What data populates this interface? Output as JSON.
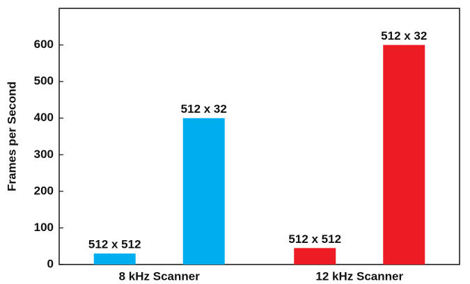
{
  "chart_data": {
    "type": "bar",
    "y_label": "Frames per Second",
    "categories": [
      "8 kHz Scanner",
      "12 kHz Scanner"
    ],
    "colors": [
      "#00aeef",
      "#ed1c24"
    ],
    "series": [
      {
        "name": "512 x 512",
        "values": [
          30,
          45
        ]
      },
      {
        "name": "512 x 32",
        "values": [
          400,
          600
        ]
      }
    ],
    "ylim": [
      0,
      700
    ],
    "yticks": [
      0,
      100,
      200,
      300,
      400,
      500,
      600
    ],
    "grid": false
  }
}
